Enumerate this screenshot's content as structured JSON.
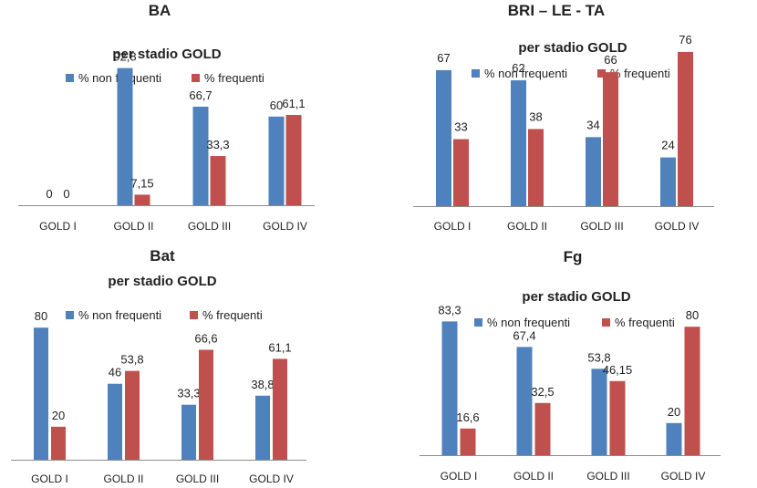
{
  "series_colors": [
    "#4F81BD",
    "#C0504D"
  ],
  "chart_data": [
    {
      "type": "bar",
      "title": "BA",
      "subtitle": "per stadio GOLD",
      "categories": [
        "GOLD I",
        "GOLD II",
        "GOLD III",
        "GOLD IV"
      ],
      "ylim": [
        0,
        100
      ],
      "legend": "top",
      "grid": false,
      "series": [
        {
          "name": "% non frequenti",
          "values": [
            0,
            92.8,
            66.7,
            60
          ],
          "labels": [
            "0",
            "92,8",
            "66,7",
            "60"
          ]
        },
        {
          "name": "% frequenti",
          "values": [
            0,
            7.15,
            33.3,
            61.1
          ],
          "labels": [
            "0",
            "7,15",
            "33,3",
            "61,1"
          ]
        }
      ]
    },
    {
      "type": "bar",
      "title": "BRI – LE - TA",
      "subtitle": "per stadio GOLD",
      "categories": [
        "GOLD I",
        "GOLD II",
        "GOLD III",
        "GOLD IV"
      ],
      "ylim": [
        0,
        80
      ],
      "legend": "top",
      "grid": false,
      "series": [
        {
          "name": "% non frequenti",
          "values": [
            67,
            62,
            34,
            24
          ],
          "labels": [
            "67",
            "62",
            "34",
            "24"
          ]
        },
        {
          "name": "% frequenti",
          "values": [
            33,
            38,
            66,
            76
          ],
          "labels": [
            "33",
            "38",
            "66",
            "76"
          ]
        }
      ]
    },
    {
      "type": "bar",
      "title": "Bat",
      "subtitle": "per stadio GOLD",
      "categories": [
        "GOLD I",
        "GOLD II",
        "GOLD III",
        "GOLD IV"
      ],
      "ylim": [
        0,
        100
      ],
      "legend": "top",
      "grid": false,
      "series": [
        {
          "name": "% non frequenti",
          "values": [
            80,
            46,
            33.3,
            38.8
          ],
          "labels": [
            "80",
            "46",
            "33,3",
            "38,8"
          ]
        },
        {
          "name": "% frequenti",
          "values": [
            20,
            53.8,
            66.6,
            61.1
          ],
          "labels": [
            "20",
            "53,8",
            "66,6",
            "61,1"
          ]
        }
      ]
    },
    {
      "type": "bar",
      "title": "Fg",
      "subtitle": "per stadio GOLD",
      "categories": [
        "GOLD I",
        "GOLD II",
        "GOLD III",
        "GOLD IV"
      ],
      "ylim": [
        0,
        100
      ],
      "legend": "top",
      "grid": false,
      "series": [
        {
          "name": "% non frequenti",
          "values": [
            83.3,
            67.4,
            53.8,
            20
          ],
          "labels": [
            "83,3",
            "67,4",
            "53,8",
            "20"
          ]
        },
        {
          "name": "% frequenti",
          "values": [
            16.6,
            32.5,
            46.15,
            80
          ],
          "labels": [
            "16,6",
            "32,5",
            "46,15",
            "80"
          ]
        }
      ]
    }
  ]
}
